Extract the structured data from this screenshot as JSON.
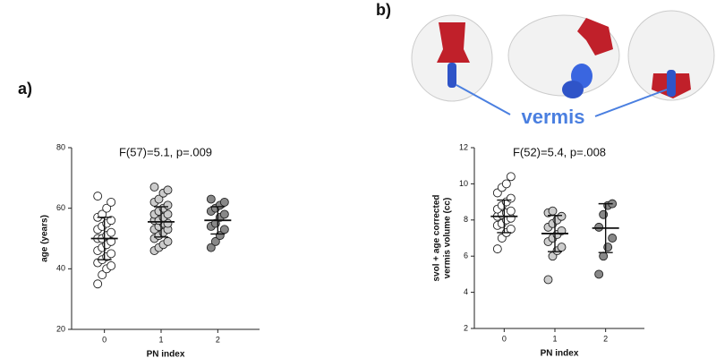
{
  "chart_data": [
    {
      "type": "dotplot",
      "panel_label": "a)",
      "title": "F(57)=5.1, p=.009",
      "x_label": "PN index",
      "y_label": [
        "age (years)"
      ],
      "categories": [
        "0",
        "1",
        "2"
      ],
      "ylim": [
        20,
        80
      ],
      "yticks": [
        20,
        40,
        60,
        80
      ],
      "groups": [
        {
          "color": "#ffffff",
          "values": [
            35,
            38,
            40,
            41,
            42,
            43,
            44,
            45,
            46,
            47,
            48,
            49,
            50,
            50,
            51,
            52,
            53,
            54,
            55,
            56,
            57,
            58,
            60,
            62,
            64
          ],
          "mean": 50,
          "sd": 7
        },
        {
          "color": "#cccccc",
          "values": [
            46,
            47,
            48,
            49,
            50,
            51,
            52,
            53,
            53,
            54,
            55,
            55,
            56,
            56,
            57,
            58,
            58,
            59,
            60,
            61,
            62,
            63,
            65,
            66,
            67
          ],
          "mean": 55.5,
          "sd": 5
        },
        {
          "color": "#888888",
          "values": [
            47,
            49,
            51,
            53,
            54,
            55,
            57,
            58,
            59,
            60,
            61,
            62,
            63
          ],
          "mean": 56,
          "sd": 4.5
        }
      ]
    },
    {
      "type": "dotplot",
      "panel_label": "b)",
      "annotation": "vermis",
      "title": "F(52)=5.4, p=.008",
      "x_label": "PN index",
      "y_label": [
        "svol + age corrected",
        "vermis volume (cc)"
      ],
      "categories": [
        "0",
        "1",
        "2"
      ],
      "ylim": [
        2,
        12
      ],
      "yticks": [
        2,
        4,
        6,
        8,
        10,
        12
      ],
      "groups": [
        {
          "color": "#ffffff",
          "values": [
            6.4,
            7.0,
            7.3,
            7.5,
            7.7,
            7.8,
            8.0,
            8.1,
            8.2,
            8.3,
            8.4,
            8.5,
            8.6,
            8.8,
            9.0,
            9.2,
            9.5,
            9.8,
            10.0,
            10.4
          ],
          "mean": 8.2,
          "sd": 0.9
        },
        {
          "color": "#cccccc",
          "values": [
            4.7,
            6.0,
            6.3,
            6.5,
            6.8,
            7.0,
            7.2,
            7.4,
            7.6,
            7.8,
            8.0,
            8.2,
            8.4,
            8.5
          ],
          "mean": 7.25,
          "sd": 1.0
        },
        {
          "color": "#888888",
          "values": [
            5.0,
            6.0,
            6.5,
            7.0,
            7.6,
            8.3,
            8.8,
            8.9
          ],
          "mean": 7.55,
          "sd": 1.35
        }
      ]
    }
  ]
}
